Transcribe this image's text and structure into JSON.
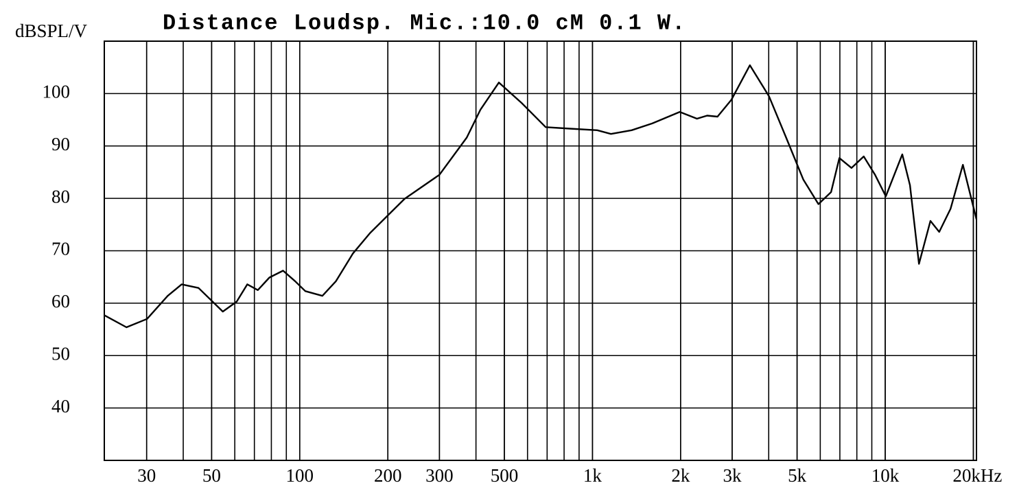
{
  "chart_data": {
    "type": "line",
    "title": "Distance Loudsp. Mic.:10.0 cM 0.1 W.",
    "y_label": "dBSPL/V",
    "x_scale": "log",
    "xlim": [
      21.5,
      20500
    ],
    "ylim": [
      30,
      110
    ],
    "xticks": [
      30,
      50,
      100,
      200,
      300,
      500,
      {
        "value": 1000,
        "label": "1k"
      },
      {
        "value": 2000,
        "label": "2k"
      },
      {
        "value": 3000,
        "label": "3k"
      },
      {
        "value": 5000,
        "label": "5k"
      },
      {
        "value": 10000,
        "label": "10k"
      },
      {
        "value": 20000,
        "label": "20kHz"
      }
    ],
    "yticks": [
      40,
      50,
      60,
      70,
      80,
      90,
      100
    ],
    "grid": true,
    "minor_grid": true,
    "series": [
      {
        "color": "#000000",
        "x": [
          21.5,
          25.6,
          30.1,
          35.4,
          39.5,
          45.1,
          54.6,
          60.9,
          66.2,
          71.9,
          78.8,
          87.7,
          96.4,
          104.5,
          119.5,
          133,
          152,
          174,
          228,
          300,
          372,
          414,
          479,
          573,
          692,
          837,
          1038,
          1157,
          1361,
          1600,
          1987,
          2275,
          2464,
          2674,
          2982,
          3450,
          4008,
          4588,
          5250,
          5915,
          6531,
          6971,
          7673,
          8444,
          9234,
          10050,
          11440,
          12150,
          13040,
          14270,
          15290,
          16720,
          18420,
          20500
        ],
        "values": [
          57.7,
          55.4,
          57,
          61.4,
          63.6,
          62.9,
          58.4,
          60.3,
          63.6,
          62.5,
          64.9,
          66.2,
          64.2,
          62.3,
          61.4,
          64.2,
          69.5,
          73.4,
          79.9,
          84.5,
          91.6,
          96.9,
          102.1,
          98.2,
          93.6,
          93.3,
          93,
          92.3,
          93,
          94.3,
          96.5,
          95.2,
          95.8,
          95.6,
          98.8,
          105.4,
          99.5,
          91.6,
          83.6,
          78.9,
          81.2,
          87.7,
          85.8,
          88,
          84.5,
          80.4,
          88.4,
          82.5,
          67.5,
          75.7,
          73.6,
          78,
          86.4,
          76
        ]
      }
    ]
  }
}
